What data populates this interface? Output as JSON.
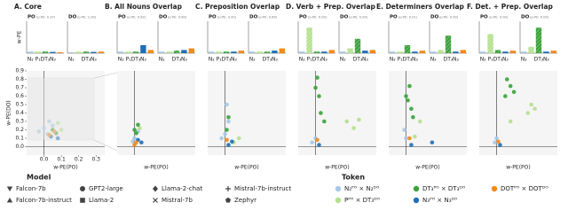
{
  "chart_data": [
    {
      "type": "panel",
      "title": "A. Core",
      "charts": [
        {
          "type": "bar",
          "title": "PO",
          "subtitle": "(p-PE: 0.37)",
          "ylabel": "w-PE",
          "categories": [
            "N₂",
            "P₁",
            "DT₃",
            "N₃",
            null
          ],
          "values": [
            0.05,
            0.05,
            0.05,
            0.04,
            0.03
          ],
          "colors": [
            "#a6c8e6",
            "#b5e08f",
            "#3aa23a",
            "#1f6fb4",
            "#f28a1c"
          ],
          "hatched": [
            false,
            true,
            true,
            false,
            false
          ],
          "ylim": [
            0,
            1
          ]
        },
        {
          "type": "bar",
          "title": "DO",
          "subtitle": "(p-PE: 1.00)",
          "categories": [
            "N₂",
            null,
            "DT₃",
            "N₃",
            null
          ],
          "values": [
            0.03,
            0.05,
            0.05,
            0.04,
            0.05
          ],
          "colors": [
            "#a6c8e6",
            "#b5e08f",
            "#3aa23a",
            "#1f6fb4",
            "#f28a1c"
          ],
          "hatched": [
            false,
            true,
            true,
            false,
            false
          ],
          "ylim": [
            0,
            1
          ]
        },
        {
          "type": "scatter",
          "xlabel": "w-PE(PO)",
          "ylabel": "w-PE(DO)",
          "xlim": [
            -0.1,
            0.35
          ],
          "ylim": [
            -0.1,
            0.9
          ],
          "xticks": [
            {
              "value": 0,
              "label": "0.0"
            },
            0.1,
            0.2,
            0.3
          ],
          "yticks": [
            {
              "value": 0,
              "label": "0.0"
            },
            0.1,
            0.2,
            0.3,
            0.4,
            0.5,
            0.6,
            0.7,
            0.8,
            0.9
          ],
          "series": [
            {
              "color": "#a6c8e6",
              "x": [
                0.0,
                0.03,
                -0.03,
                0.05,
                0.02
              ],
              "y": [
                0.22,
                0.3,
                0.18,
                0.25,
                0.15
              ]
            },
            {
              "color": "#b5e08f",
              "x": [
                0.08,
                0.1
              ],
              "y": [
                0.28,
                0.2
              ]
            },
            {
              "color": "#3aa23a",
              "x": [
                0.05,
                0.07
              ],
              "y": [
                0.2,
                0.16
              ]
            },
            {
              "color": "#1f6fb4",
              "x": [
                0.04,
                0.08
              ],
              "y": [
                0.12,
                0.1
              ]
            },
            {
              "color": "#f28a1c",
              "x": [
                0.03,
                0.06
              ],
              "y": [
                0.14,
                0.18
              ]
            }
          ]
        }
      ]
    },
    {
      "type": "panel",
      "title": "B. All Nouns Overlap",
      "charts": [
        {
          "type": "bar",
          "title": "PO",
          "subtitle": "(p-PE: 0.62)",
          "categories": [
            "N₂",
            "P₁",
            "DT₃",
            "N₃",
            null
          ],
          "values": [
            0.05,
            0.05,
            0.05,
            0.25,
            0.1
          ],
          "colors": [
            "#a6c8e6",
            "#b5e08f",
            "#3aa23a",
            "#1f6fb4",
            "#f28a1c"
          ],
          "hatched": [
            false,
            true,
            true,
            false,
            false
          ],
          "ylim": [
            0,
            1
          ]
        },
        {
          "type": "bar",
          "title": "DO",
          "subtitle": "(p-PE: 0.60)",
          "categories": [
            "N₂",
            null,
            "DT₃",
            "N₃",
            null
          ],
          "values": [
            0.05,
            0.05,
            0.08,
            0.1,
            0.15
          ],
          "colors": [
            "#a6c8e6",
            "#b5e08f",
            "#3aa23a",
            "#1f6fb4",
            "#f28a1c"
          ],
          "hatched": [
            false,
            true,
            true,
            false,
            false
          ],
          "ylim": [
            0,
            1
          ]
        },
        {
          "type": "scatter",
          "xlabel": "w-PE(PO)",
          "xlim": [
            -0.1,
            0.35
          ],
          "ylim": [
            -0.1,
            0.9
          ],
          "series": [
            {
              "color": "#a6c8e6",
              "x": [
                0.0,
                0.02,
                -0.01
              ],
              "y": [
                0.1,
                0.18,
                0.06
              ]
            },
            {
              "color": "#b5e08f",
              "x": [
                0.03
              ],
              "y": [
                0.22
              ]
            },
            {
              "color": "#3aa23a",
              "x": [
                0.01,
                0.02,
                0.0
              ],
              "y": [
                0.16,
                0.26,
                0.2
              ]
            },
            {
              "color": "#1f6fb4",
              "x": [
                0.04,
                0.02
              ],
              "y": [
                0.05,
                0.08
              ]
            },
            {
              "color": "#f28a1c",
              "x": [
                0.0,
                0.01
              ],
              "y": [
                0.02,
                0.05
              ]
            }
          ]
        }
      ]
    },
    {
      "type": "panel",
      "title": "C. Preposition Overlap",
      "charts": [
        {
          "type": "bar",
          "title": "PO",
          "subtitle": "(p-PE: 0.42)",
          "categories": [
            "N₂",
            "P₁",
            "DT₃",
            "N₃",
            null
          ],
          "values": [
            0.05,
            0.05,
            0.05,
            0.05,
            0.08
          ],
          "colors": [
            "#a6c8e6",
            "#b5e08f",
            "#3aa23a",
            "#1f6fb4",
            "#f28a1c"
          ],
          "hatched": [
            false,
            true,
            true,
            false,
            false
          ],
          "ylim": [
            0,
            1
          ]
        },
        {
          "type": "bar",
          "title": "DO",
          "subtitle": "(p-PE: 0.60)",
          "categories": [
            "N₂",
            null,
            "DT₃",
            "N₃",
            null
          ],
          "values": [
            0.05,
            0.05,
            0.05,
            0.08,
            0.15
          ],
          "colors": [
            "#a6c8e6",
            "#b5e08f",
            "#3aa23a",
            "#1f6fb4",
            "#f28a1c"
          ],
          "hatched": [
            false,
            true,
            true,
            false,
            false
          ],
          "ylim": [
            0,
            1
          ]
        },
        {
          "type": "scatter",
          "xlabel": "w-PE(PO)",
          "xlim": [
            -0.1,
            0.35
          ],
          "ylim": [
            -0.1,
            0.9
          ],
          "series": [
            {
              "color": "#a6c8e6",
              "x": [
                0.0,
                0.02,
                -0.02,
                0.01
              ],
              "y": [
                0.15,
                0.3,
                0.1,
                0.5
              ]
            },
            {
              "color": "#b5e08f",
              "x": [
                0.08,
                0.05
              ],
              "y": [
                0.1,
                0.05
              ]
            },
            {
              "color": "#3aa23a",
              "x": [
                0.01,
                0.02
              ],
              "y": [
                0.2,
                0.35
              ]
            },
            {
              "color": "#1f6fb4",
              "x": [
                0.02,
                0.04
              ],
              "y": [
                0.02,
                0.06
              ]
            },
            {
              "color": "#f28a1c",
              "x": [
                0.01
              ],
              "y": [
                0.08
              ]
            }
          ]
        }
      ]
    },
    {
      "type": "panel",
      "title": "D. Verb + Prep. Overlap",
      "charts": [
        {
          "type": "bar",
          "title": "PO",
          "subtitle": "(p-PE: 0.00)",
          "categories": [
            "N₂",
            "P₁",
            "DT₃",
            "N₃",
            null
          ],
          "values": [
            0.05,
            0.8,
            0.05,
            0.05,
            0.1
          ],
          "colors": [
            "#a6c8e6",
            "#b5e08f",
            "#3aa23a",
            "#1f6fb4",
            "#f28a1c"
          ],
          "hatched": [
            false,
            true,
            true,
            false,
            false
          ],
          "ylim": [
            0,
            1
          ]
        },
        {
          "type": "bar",
          "title": "DO",
          "subtitle": "(p-PE: 0.00)",
          "categories": [
            "N₂",
            null,
            "DT₃",
            "N₃",
            null
          ],
          "values": [
            0.05,
            0.15,
            0.45,
            0.08,
            0.1
          ],
          "colors": [
            "#a6c8e6",
            "#b5e08f",
            "#3aa23a",
            "#1f6fb4",
            "#f28a1c"
          ],
          "hatched": [
            false,
            true,
            true,
            false,
            false
          ],
          "ylim": [
            0,
            1
          ]
        },
        {
          "type": "scatter",
          "xlabel": "w-PE(PO)",
          "xlim": [
            -0.1,
            0.35
          ],
          "ylim": [
            -0.1,
            0.9
          ],
          "series": [
            {
              "color": "#a6c8e6",
              "x": [
                0.0,
                -0.02
              ],
              "y": [
                0.1,
                0.05
              ]
            },
            {
              "color": "#b5e08f",
              "x": [
                0.18,
                0.22,
                0.25
              ],
              "y": [
                0.3,
                0.22,
                0.32
              ]
            },
            {
              "color": "#3aa23a",
              "x": [
                0.03,
                0.0,
                0.02,
                0.05,
                0.01
              ],
              "y": [
                0.4,
                0.7,
                0.6,
                0.3,
                0.82
              ]
            },
            {
              "color": "#1f6fb4",
              "x": [
                0.02
              ],
              "y": [
                0.02
              ]
            },
            {
              "color": "#f28a1c",
              "x": [
                0.01
              ],
              "y": [
                0.08
              ]
            }
          ]
        }
      ]
    },
    {
      "type": "panel",
      "title": "E. Determiners Overlap",
      "charts": [
        {
          "type": "bar",
          "title": "PO",
          "subtitle": "(p-PE: 0.01)",
          "categories": [
            "N₂",
            "P₁",
            "DT₃",
            "N₃",
            null
          ],
          "values": [
            0.05,
            0.05,
            0.25,
            0.05,
            0.08
          ],
          "colors": [
            "#a6c8e6",
            "#b5e08f",
            "#3aa23a",
            "#1f6fb4",
            "#f28a1c"
          ],
          "hatched": [
            false,
            true,
            true,
            false,
            false
          ],
          "ylim": [
            0,
            1
          ]
        },
        {
          "type": "bar",
          "title": "DO",
          "subtitle": "(p-PE: 0.00)",
          "categories": [
            "N₂",
            null,
            "DT₃",
            "N₃",
            null
          ],
          "values": [
            0.05,
            0.1,
            0.55,
            0.05,
            0.1
          ],
          "colors": [
            "#a6c8e6",
            "#b5e08f",
            "#3aa23a",
            "#1f6fb4",
            "#f28a1c"
          ],
          "hatched": [
            false,
            true,
            true,
            false,
            false
          ],
          "ylim": [
            0,
            1
          ]
        },
        {
          "type": "scatter",
          "xlabel": "w-PE(PO)",
          "xlim": [
            -0.1,
            0.35
          ],
          "ylim": [
            -0.1,
            0.9
          ],
          "series": [
            {
              "color": "#a6c8e6",
              "x": [
                0.0,
                -0.01
              ],
              "y": [
                0.1,
                0.2
              ]
            },
            {
              "color": "#b5e08f",
              "x": [
                0.05,
                0.08
              ],
              "y": [
                0.12,
                0.3
              ]
            },
            {
              "color": "#3aa23a",
              "x": [
                0.02,
                0.0,
                0.03,
                0.04,
                0.01
              ],
              "y": [
                0.72,
                0.6,
                0.45,
                0.35,
                0.55
              ]
            },
            {
              "color": "#1f6fb4",
              "x": [
                0.15,
                0.03
              ],
              "y": [
                0.05,
                0.02
              ]
            },
            {
              "color": "#f28a1c",
              "x": [
                0.02
              ],
              "y": [
                0.1
              ]
            }
          ]
        }
      ]
    },
    {
      "type": "panel",
      "title": "F. Det. + Prep. Overlap",
      "charts": [
        {
          "type": "bar",
          "title": "PO",
          "subtitle": "(p-PE: 0.00)",
          "categories": [
            "N₂",
            "P₁",
            "DT₃",
            "N₃",
            null
          ],
          "values": [
            0.05,
            0.6,
            0.1,
            0.05,
            0.08
          ],
          "colors": [
            "#a6c8e6",
            "#b5e08f",
            "#3aa23a",
            "#1f6fb4",
            "#f28a1c"
          ],
          "hatched": [
            false,
            true,
            true,
            false,
            false
          ],
          "ylim": [
            0,
            1
          ]
        },
        {
          "type": "bar",
          "title": "DO",
          "subtitle": "(p-PE: 0.00)",
          "categories": [
            "N₂",
            null,
            "DT₃",
            "N₃",
            null
          ],
          "values": [
            0.05,
            0.2,
            0.8,
            0.05,
            0.08
          ],
          "colors": [
            "#a6c8e6",
            "#b5e08f",
            "#3aa23a",
            "#1f6fb4",
            "#f28a1c"
          ],
          "hatched": [
            false,
            true,
            true,
            false,
            false
          ],
          "ylim": [
            0,
            1
          ]
        },
        {
          "type": "scatter",
          "xlabel": "w-PE(PO)",
          "xlim": [
            -0.1,
            0.35
          ],
          "ylim": [
            -0.1,
            0.9
          ],
          "series": [
            {
              "color": "#a6c8e6",
              "x": [
                0.0,
                -0.01
              ],
              "y": [
                0.1,
                0.05
              ]
            },
            {
              "color": "#b5e08f",
              "x": [
                0.18,
                0.2,
                0.22,
                0.08
              ],
              "y": [
                0.4,
                0.5,
                0.45,
                0.3
              ]
            },
            {
              "color": "#3aa23a",
              "x": [
                0.06,
                0.08,
                0.05,
                0.1
              ],
              "y": [
                0.8,
                0.72,
                0.6,
                0.65
              ]
            },
            {
              "color": "#1f6fb4",
              "x": [
                0.02
              ],
              "y": [
                0.02
              ]
            },
            {
              "color": "#f28a1c",
              "x": [
                0.01
              ],
              "y": [
                0.06
              ]
            }
          ]
        }
      ]
    }
  ],
  "legend": {
    "model": {
      "title": "Model",
      "items": [
        "Falcon-7b",
        "Falcon-7b-instruct",
        "GPT2-large",
        "Llama-2",
        "Llama-2-chat",
        "Mistral-7b",
        "Mistral-7b-instruct",
        "Zephyr"
      ]
    },
    "token": {
      "title": "Token",
      "items": [
        {
          "name": "N₂ᴾᴼ × N₂ᴰᴼ",
          "color": "#a6c8e6"
        },
        {
          "name": "Pᴾᴼ × DT₃ᴰᴼ",
          "color": "#b5e08f"
        },
        {
          "name": "DT₃ᴾᴼ × DT₃ᴰᴼ",
          "color": "#3aa23a"
        },
        {
          "name": "N₃ᴾᴼ × N₃ᴰᴼ",
          "color": "#1f6fb4"
        },
        {
          "name": "DOTᴾᴼ × DOTᴰᴼ",
          "color": "#f28a1c"
        }
      ]
    }
  }
}
